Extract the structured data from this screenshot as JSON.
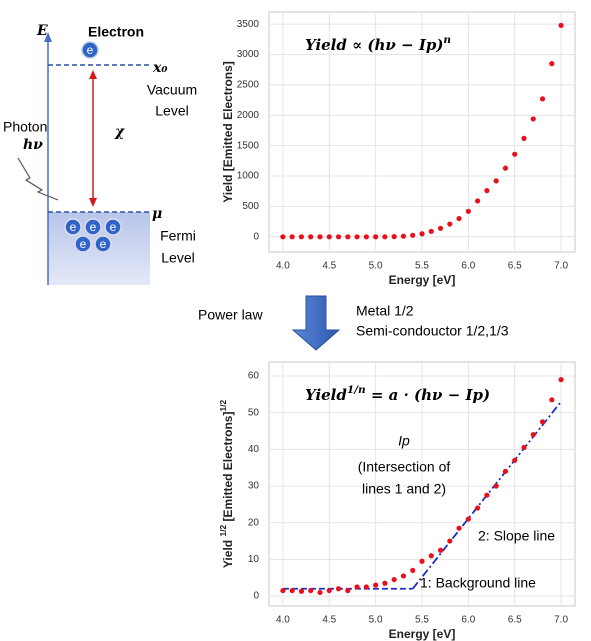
{
  "diagram": {
    "energy_axis": "E",
    "electron_label": "Electron",
    "electron_symbol": "e",
    "vacuum_symbol": "x₀",
    "vacuum_label_1": "Vacuum",
    "vacuum_label_2": "Level",
    "work_symbol": "χ",
    "photon_label": "Photon",
    "photon_symbol": "hν",
    "fermi_symbol": "μ",
    "fermi_label_1": "Fermi",
    "fermi_label_2": "Level",
    "arrow_label": "Power law",
    "note_1": "Metal 1/2",
    "note_2": "Semi-condouctor 1/2,1/3"
  },
  "chart_data": [
    {
      "type": "scatter",
      "formula": [
        {
          "text": "Yield ∝ (hν − Ip)"
        },
        {
          "text": "n",
          "sup": true
        }
      ],
      "xlabel": "Energy [eV]",
      "ylabel": [
        {
          "text": "Yield [Emitted Electrons]"
        }
      ],
      "x": [
        4.0,
        4.1,
        4.2,
        4.3,
        4.4,
        4.5,
        4.6,
        4.7,
        4.8,
        4.9,
        5.0,
        5.1,
        5.2,
        5.3,
        5.4,
        5.5,
        5.6,
        5.7,
        5.8,
        5.9,
        6.0,
        6.1,
        6.2,
        6.3,
        6.4,
        6.5,
        6.6,
        6.7,
        6.8,
        6.9,
        7.0
      ],
      "series": [
        {
          "color": "#e8101a",
          "values": [
            0,
            0,
            0,
            0,
            0,
            0,
            0,
            0,
            0,
            0,
            0,
            0,
            3,
            10,
            25,
            50,
            90,
            140,
            210,
            300,
            420,
            590,
            760,
            920,
            1130,
            1360,
            1620,
            1940,
            2270,
            2850,
            3480
          ]
        }
      ],
      "xlim": [
        3.85,
        7.15
      ],
      "xticks": [
        {
          "value": 4,
          "label": "4.0"
        },
        {
          "value": 4.5,
          "label": "4.5"
        },
        {
          "value": 5,
          "label": "5.0"
        },
        {
          "value": 5.5,
          "label": "5.5"
        },
        {
          "value": 6,
          "label": "6.0"
        },
        {
          "value": 6.5,
          "label": "6.5"
        },
        {
          "value": 7,
          "label": "7.0"
        }
      ],
      "ylim": [
        -250,
        3700
      ],
      "yticks": [
        0,
        500,
        1000,
        1500,
        2000,
        2500,
        3000,
        3500
      ],
      "grid": true
    },
    {
      "type": "scatter",
      "formula": [
        {
          "text": "Yield"
        },
        {
          "text": "1/n",
          "sup": true
        },
        {
          "text": " = a · (hν − Ip)"
        }
      ],
      "xlabel": "Energy [eV]",
      "ylabel": [
        {
          "text": "Yield "
        },
        {
          "text": "1/2",
          "sup": true
        },
        {
          "text": " [Emitted Electrons]"
        },
        {
          "text": "1/2",
          "sup": true
        }
      ],
      "x": [
        4.0,
        4.1,
        4.2,
        4.3,
        4.4,
        4.5,
        4.6,
        4.7,
        4.8,
        4.9,
        5.0,
        5.1,
        5.2,
        5.3,
        5.4,
        5.5,
        5.6,
        5.7,
        5.8,
        5.9,
        6.0,
        6.1,
        6.2,
        6.3,
        6.4,
        6.5,
        6.6,
        6.7,
        6.8,
        6.9,
        7.0
      ],
      "series": [
        {
          "color": "#e8101a",
          "values": [
            1.5,
            1.5,
            1.3,
            1.5,
            1.0,
            1.5,
            2,
            1.5,
            2.5,
            2.5,
            3,
            3.5,
            4.5,
            5.5,
            7,
            9.5,
            11,
            12.5,
            15,
            18.5,
            21,
            24,
            27.5,
            30,
            34,
            37,
            40.5,
            44,
            47.5,
            53.5,
            59
          ]
        }
      ],
      "lines": [
        {
          "x": [
            4.0,
            5.4
          ],
          "values": [
            2,
            2
          ],
          "color": "#1a2fc0",
          "dash": "dashed",
          "label": "1: Background line"
        },
        {
          "x": [
            5.4,
            7.0
          ],
          "values": [
            2,
            53
          ],
          "color": "#1a2fc0",
          "dash": "dashdot",
          "label": "2: Slope line"
        }
      ],
      "annotation": [
        "Ip",
        "(Intersection of",
        "lines 1 and 2)"
      ],
      "xlim": [
        3.85,
        7.15
      ],
      "xticks": [
        {
          "value": 4,
          "label": "4.0"
        },
        {
          "value": 4.5,
          "label": "4.5"
        },
        {
          "value": 5,
          "label": "5.0"
        },
        {
          "value": 5.5,
          "label": "5.5"
        },
        {
          "value": 6,
          "label": "6.0"
        },
        {
          "value": 6.5,
          "label": "6.5"
        },
        {
          "value": 7,
          "label": "7.0"
        }
      ],
      "ylim": [
        -2.7,
        63.8
      ],
      "yticks": [
        0,
        10,
        20,
        30,
        40,
        50,
        60
      ],
      "grid": true
    }
  ]
}
